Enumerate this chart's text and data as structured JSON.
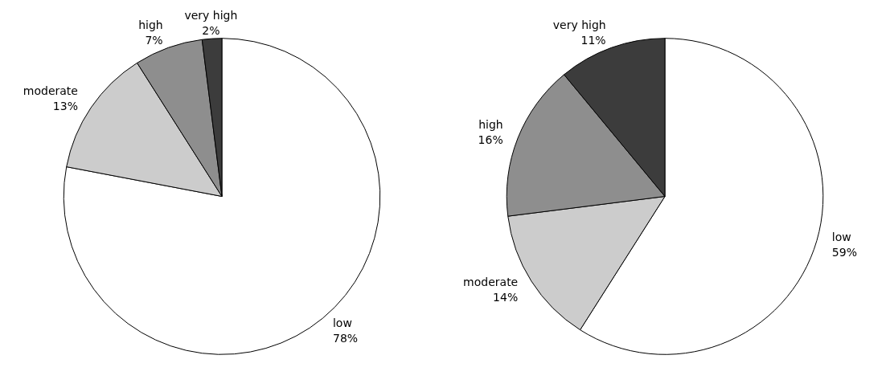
{
  "chart_data": [
    {
      "type": "pie",
      "categories": [
        "low",
        "moderate",
        "high",
        "very high"
      ],
      "values": [
        78,
        13,
        7,
        2
      ],
      "value_labels": [
        "78%",
        "13%",
        "7%",
        "2%"
      ],
      "colors": [
        "#ffffff",
        "#cccccc",
        "#8e8e8e",
        "#3c3c3c"
      ]
    },
    {
      "type": "pie",
      "categories": [
        "low",
        "moderate",
        "high",
        "very high"
      ],
      "values": [
        59,
        14,
        16,
        11
      ],
      "value_labels": [
        "59%",
        "14%",
        "16%",
        "11%"
      ],
      "colors": [
        "#ffffff",
        "#cccccc",
        "#8e8e8e",
        "#3c3c3c"
      ]
    }
  ]
}
